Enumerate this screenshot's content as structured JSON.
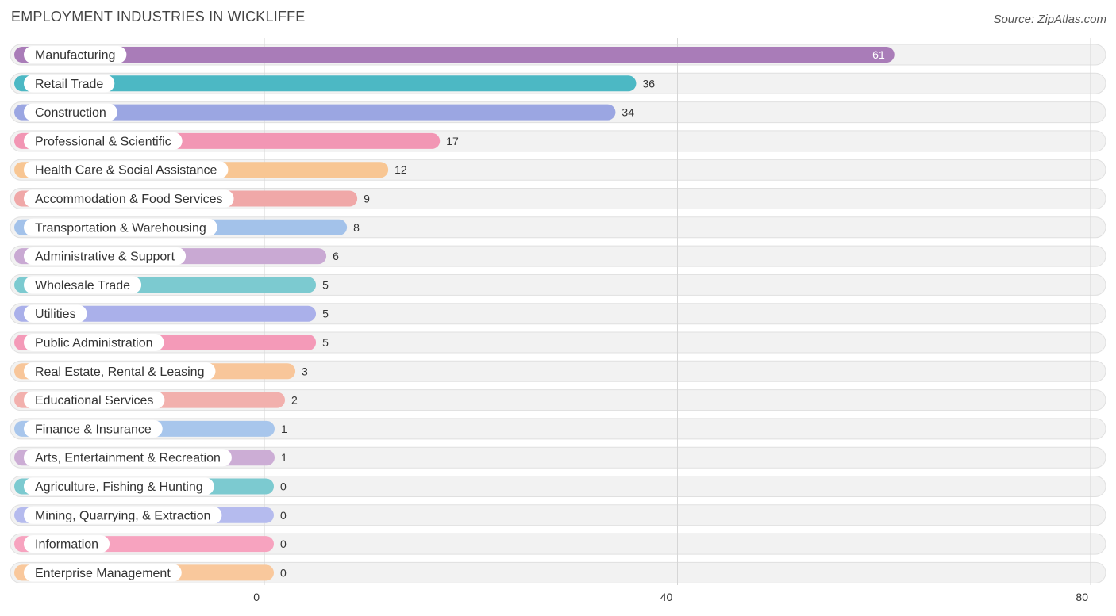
{
  "title": "EMPLOYMENT INDUSTRIES IN WICKLIFFE",
  "source": "Source: ZipAtlas.com",
  "chart_data": {
    "type": "bar",
    "orientation": "horizontal",
    "title": "EMPLOYMENT INDUSTRIES IN WICKLIFFE",
    "xlabel": "",
    "ylabel": "",
    "xlim": [
      0,
      80
    ],
    "x_ticks": [
      "0",
      "40",
      "80"
    ],
    "grid": true,
    "categories": [
      "Manufacturing",
      "Retail Trade",
      "Construction",
      "Professional & Scientific",
      "Health Care & Social Assistance",
      "Accommodation & Food Services",
      "Transportation & Warehousing",
      "Administrative & Support",
      "Wholesale Trade",
      "Utilities",
      "Public Administration",
      "Real Estate, Rental & Leasing",
      "Educational Services",
      "Finance & Insurance",
      "Arts, Entertainment & Recreation",
      "Agriculture, Fishing & Hunting",
      "Mining, Quarrying, & Extraction",
      "Information",
      "Enterprise Management"
    ],
    "values": [
      61,
      36,
      34,
      17,
      12,
      9,
      8,
      6,
      5,
      5,
      5,
      3,
      2,
      1,
      1,
      0,
      0,
      0,
      0
    ],
    "colors": [
      "#a97cb8",
      "#4cb8c4",
      "#9ba6e2",
      "#f296b4",
      "#f8c693",
      "#f0a8a8",
      "#a3c2ea",
      "#c9a9d3",
      "#7ccad0",
      "#aab0ea",
      "#f49ab8",
      "#f8c69a",
      "#f2b0ad",
      "#a8c6ec",
      "#ccadd5",
      "#7ccad0",
      "#b5bbee",
      "#f7a3bf",
      "#f9c89c"
    ]
  }
}
